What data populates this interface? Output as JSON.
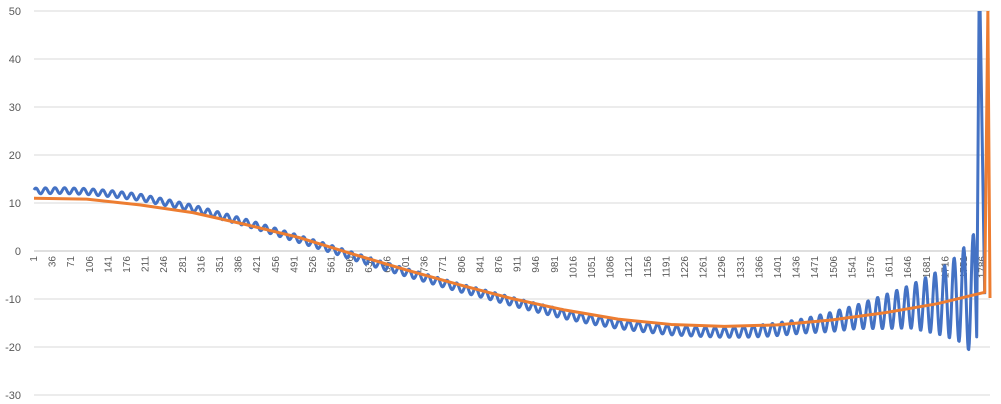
{
  "chart_data": {
    "type": "line",
    "title": "",
    "xlabel": "",
    "ylabel": "",
    "ylim": [
      -30,
      50
    ],
    "yticks": [
      50,
      40,
      30,
      20,
      10,
      0,
      -10,
      -20,
      -30
    ],
    "x_count": 1800,
    "xtick_labels": [
      "1",
      "36",
      "71",
      "106",
      "141",
      "176",
      "211",
      "246",
      "281",
      "316",
      "351",
      "386",
      "421",
      "456",
      "491",
      "526",
      "561",
      "596",
      "631",
      "666",
      "701",
      "736",
      "771",
      "806",
      "841",
      "876",
      "911",
      "946",
      "981",
      "1016",
      "1051",
      "1086",
      "1121",
      "1156",
      "1191",
      "1226",
      "1261",
      "1296",
      "1331",
      "1366",
      "1401",
      "1436",
      "1471",
      "1506",
      "1541",
      "1576",
      "1611",
      "1646",
      "1681",
      "1716",
      "1751",
      "1786"
    ],
    "grid": true,
    "legend": "none",
    "series": [
      {
        "color": "#4472c4",
        "points": [
          [
            1,
            12.5
          ],
          [
            50,
            12.6
          ],
          [
            100,
            12.4
          ],
          [
            150,
            11.9
          ],
          [
            200,
            11.2
          ],
          [
            250,
            10.1
          ],
          [
            300,
            8.9
          ],
          [
            350,
            7.4
          ],
          [
            400,
            5.9
          ],
          [
            450,
            4.2
          ],
          [
            500,
            2.5
          ],
          [
            550,
            0.8
          ],
          [
            600,
            -1.0
          ],
          [
            650,
            -2.8
          ],
          [
            700,
            -4.4
          ],
          [
            750,
            -6.0
          ],
          [
            800,
            -7.6
          ],
          [
            850,
            -9.0
          ],
          [
            900,
            -10.5
          ],
          [
            950,
            -11.9
          ],
          [
            1000,
            -13.2
          ],
          [
            1050,
            -14.3
          ],
          [
            1100,
            -15.2
          ],
          [
            1150,
            -15.9
          ],
          [
            1200,
            -16.5
          ],
          [
            1250,
            -16.8
          ],
          [
            1300,
            -17.0
          ],
          [
            1350,
            -16.8
          ],
          [
            1400,
            -16.3
          ],
          [
            1450,
            -15.6
          ],
          [
            1500,
            -14.8
          ],
          [
            1550,
            -13.7
          ],
          [
            1600,
            -12.7
          ],
          [
            1650,
            -11.6
          ],
          [
            1700,
            -10.8
          ],
          [
            1750,
            -9.5
          ],
          [
            1775,
            -9.0
          ],
          [
            1780,
            60
          ],
          [
            1790,
            -9
          ]
        ],
        "oscillation_amplitude": [
          [
            1,
            0.6
          ],
          [
            1300,
            1.0
          ],
          [
            1450,
            1.5
          ],
          [
            1550,
            2.5
          ],
          [
            1650,
            4.5
          ],
          [
            1700,
            6.5
          ],
          [
            1740,
            9.0
          ],
          [
            1765,
            12.0
          ],
          [
            1776,
            14.0
          ]
        ],
        "oscillation_period": 18
      },
      {
        "color": "#ed7d31",
        "points": [
          [
            1,
            11.0
          ],
          [
            100,
            10.8
          ],
          [
            200,
            9.6
          ],
          [
            300,
            8.0
          ],
          [
            400,
            5.5
          ],
          [
            500,
            2.8
          ],
          [
            600,
            -0.6
          ],
          [
            700,
            -3.9
          ],
          [
            800,
            -7.0
          ],
          [
            900,
            -9.9
          ],
          [
            1000,
            -12.3
          ],
          [
            1100,
            -14.2
          ],
          [
            1200,
            -15.3
          ],
          [
            1300,
            -15.7
          ],
          [
            1400,
            -15.4
          ],
          [
            1500,
            -14.4
          ],
          [
            1600,
            -12.9
          ],
          [
            1700,
            -11.0
          ],
          [
            1790,
            -8.6
          ],
          [
            1796,
            50
          ],
          [
            1800,
            -9.8
          ]
        ]
      }
    ]
  }
}
